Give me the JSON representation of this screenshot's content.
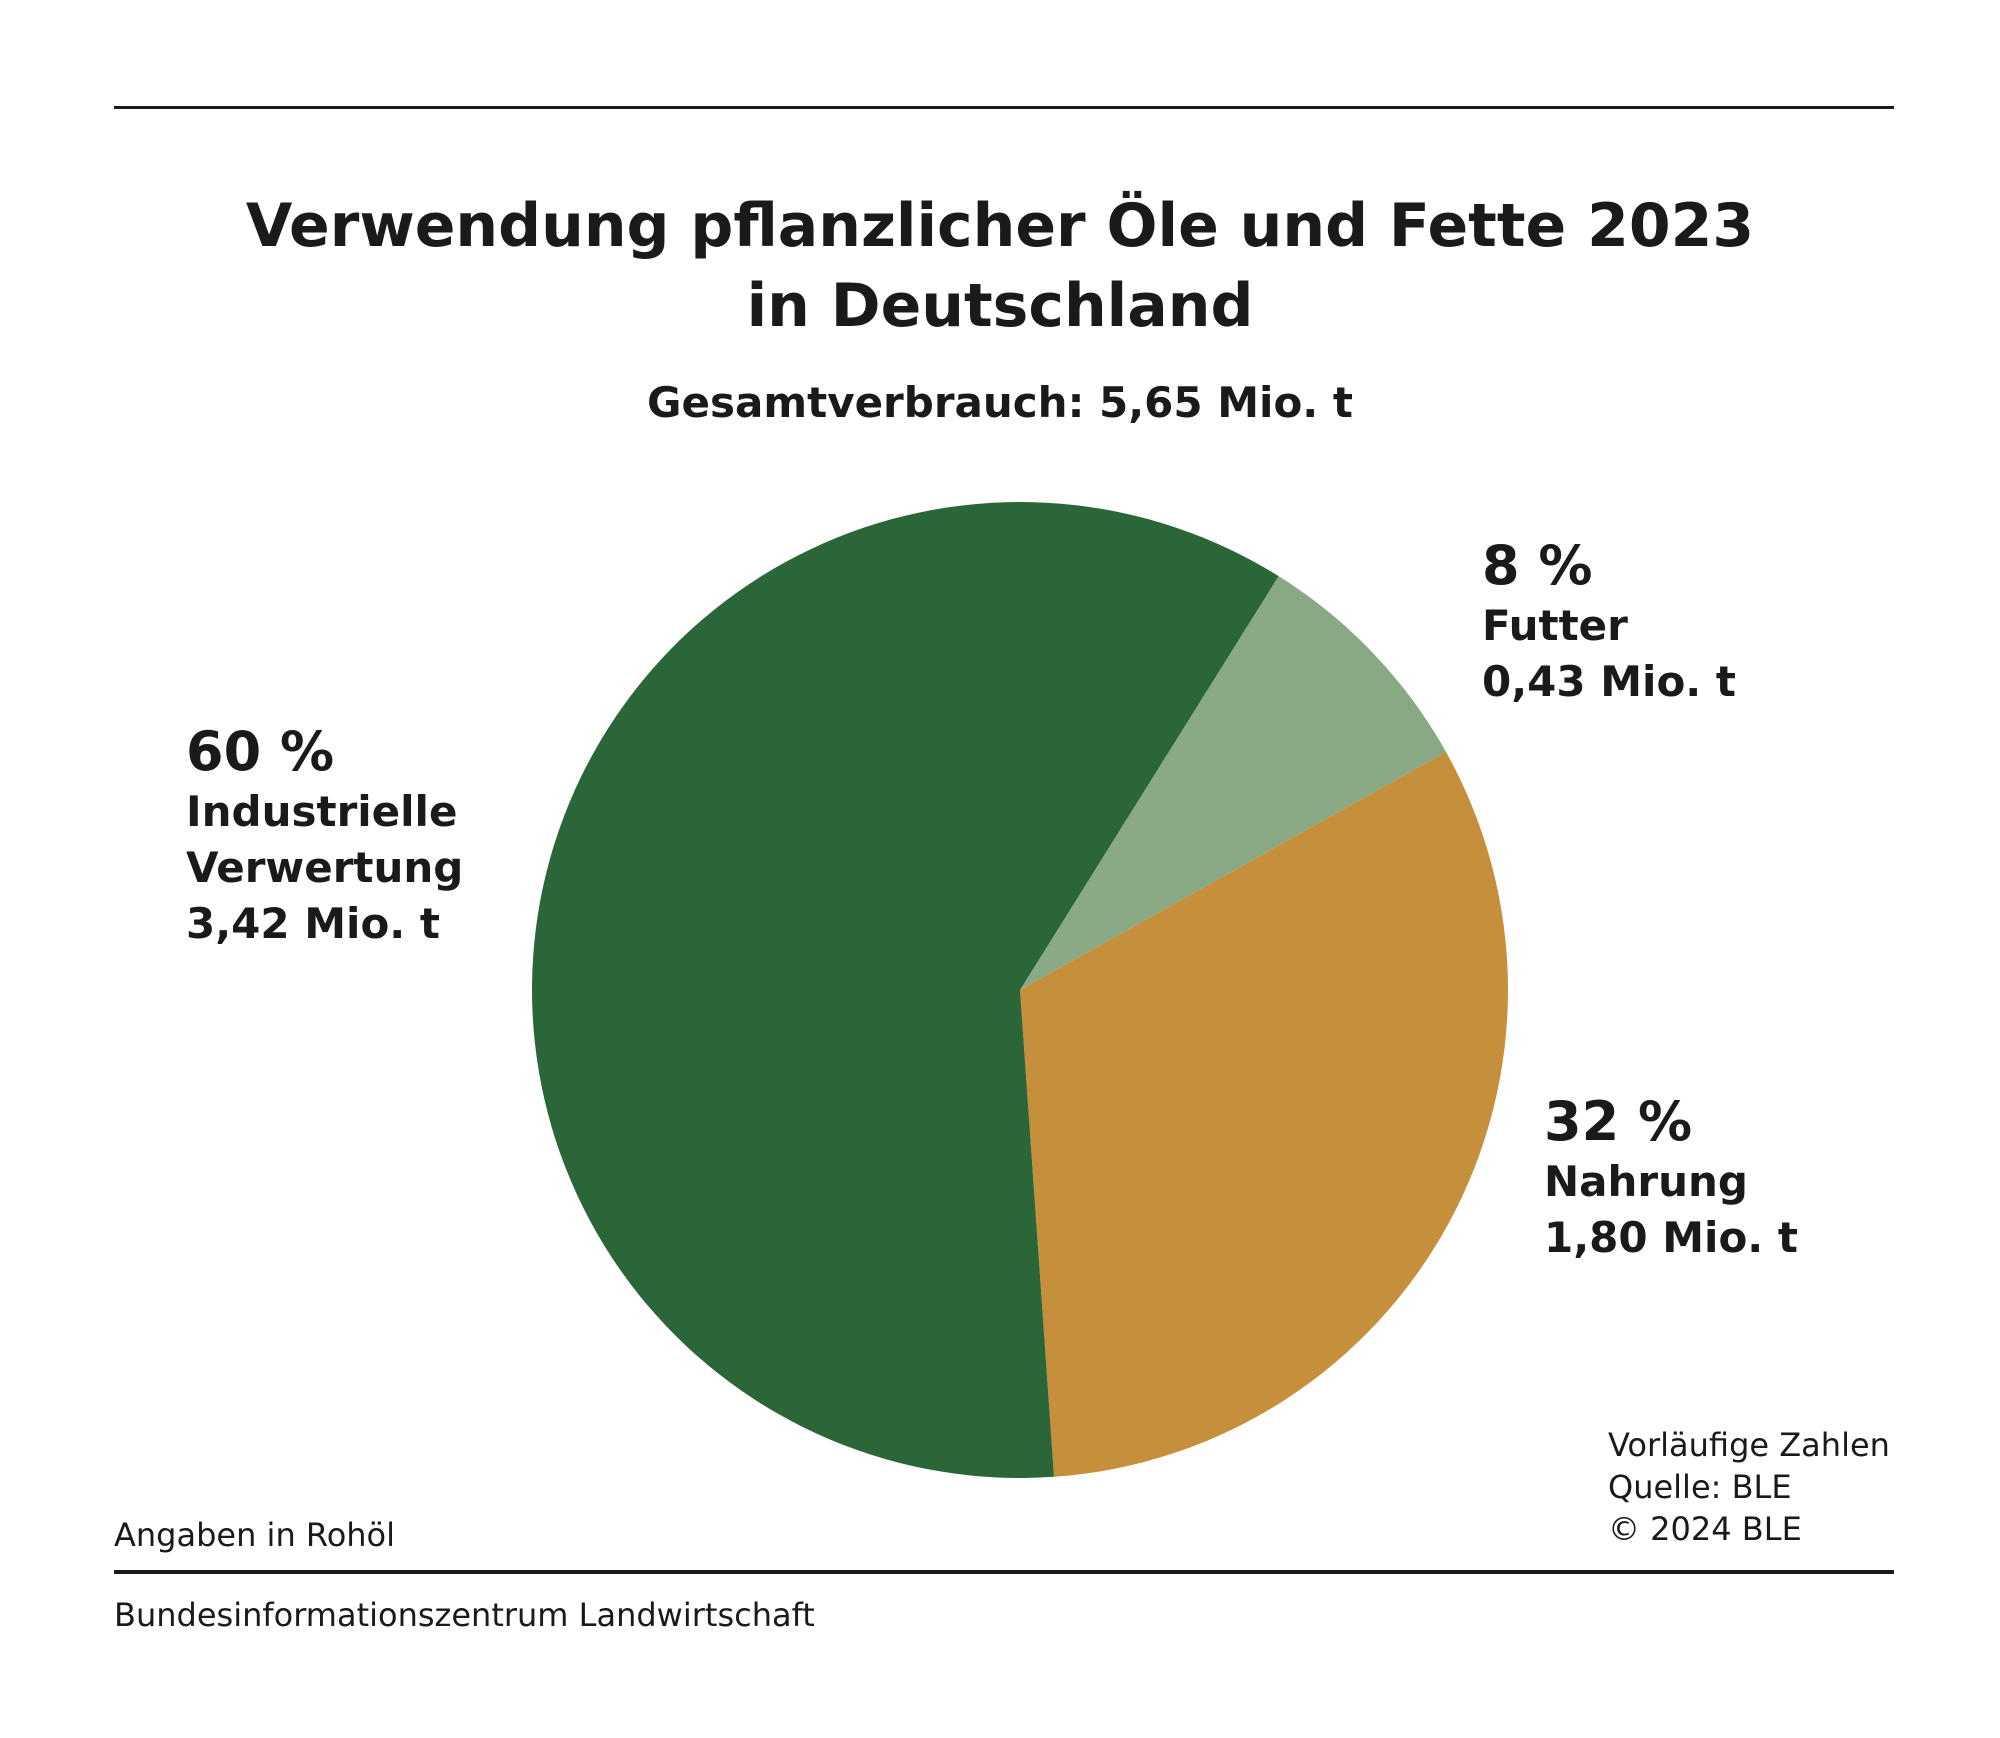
{
  "title_line1": "Verwendung pflanzlicher Öle und Fette 2023",
  "title_line2": "in Deutschland",
  "subtitle": "Gesamtverbrauch: 5,65 Mio. t",
  "notes": {
    "unit_note": "Angaben in Rohöl",
    "right": [
      "Vorläufige Zahlen",
      "Quelle: BLE",
      "© 2024 BLE"
    ],
    "footer": "Bundesinformationszentrum Landwirtschaft"
  },
  "chart_data": {
    "type": "pie",
    "title": "Verwendung pflanzlicher Öle und Fette 2023 in Deutschland",
    "subtitle": "Gesamtverbrauch: 5,65 Mio. t",
    "slices": [
      {
        "name_lines": [
          "Futter"
        ],
        "percent_label": "8 %",
        "amount_label": "0,43 Mio. t",
        "value": 0.43,
        "percent": 8,
        "color": "#88a984"
      },
      {
        "name_lines": [
          "Nahrung"
        ],
        "percent_label": "32 %",
        "amount_label": "1,80 Mio. t",
        "value": 1.8,
        "percent": 32,
        "color": "#c58f3b"
      },
      {
        "name_lines": [
          "Industrielle",
          "Verwertung"
        ],
        "percent_label": "60 %",
        "amount_label": "3,42 Mio. t",
        "value": 3.42,
        "percent": 60,
        "color": "#2b6638"
      }
    ],
    "total": 5.65,
    "unit": "Mio. t",
    "start_angle_deg": 32,
    "direction": "clockwise"
  }
}
